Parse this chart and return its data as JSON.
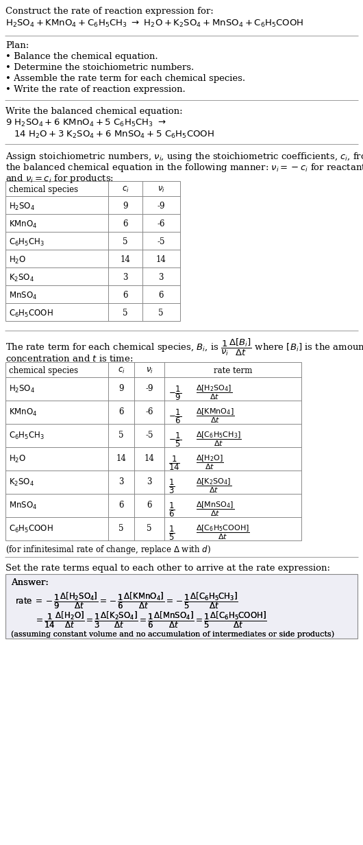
{
  "bg_color": "#ffffff",
  "title": "Construct the rate of reaction expression for:",
  "rxn_eq": "H₂SO₄ + KMnO₄ + C₆H₅CH₃  →  H₂O + K₂SO₄ + MnSO₄ + C₆H₅COOH",
  "plan_title": "Plan:",
  "plan_items": [
    "• Balance the chemical equation.",
    "• Determine the stoichiometric numbers.",
    "• Assemble the rate term for each chemical species.",
    "• Write the rate of reaction expression."
  ],
  "balanced_title": "Write the balanced chemical equation:",
  "species_col": [
    "H₂SO₄",
    "KMnO₄",
    "C₆H₅CH₃",
    "H₂O",
    "K₂SO₄",
    "MnSO₄",
    "C₆H₅COOH"
  ],
  "ci_col": [
    "9",
    "6",
    "5",
    "14",
    "3",
    "6",
    "5"
  ],
  "ni_col": [
    "-9",
    "-6",
    "-5",
    "14",
    "3",
    "6",
    "5"
  ],
  "answer_bg": "#eeeef5"
}
